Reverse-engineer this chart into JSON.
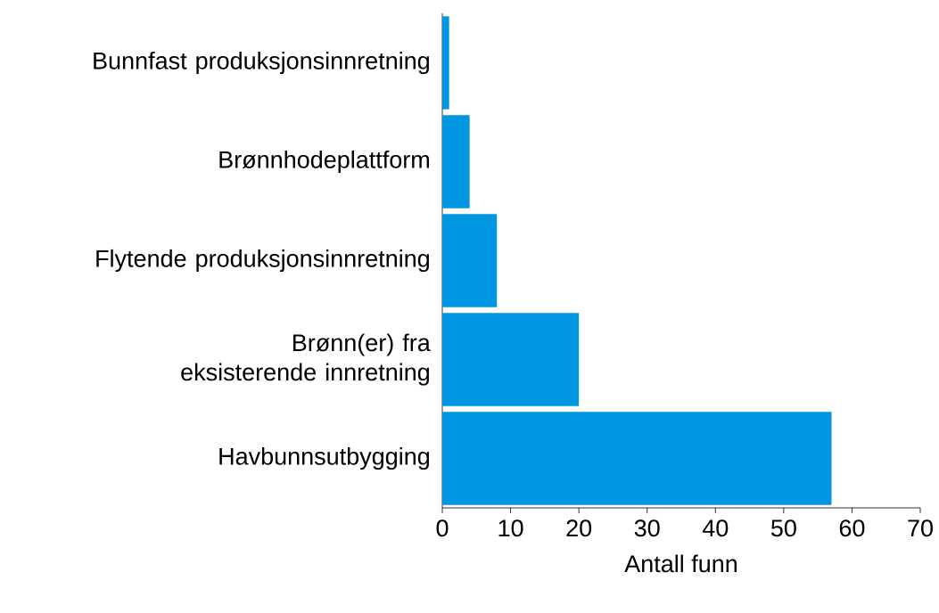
{
  "chart_data": {
    "type": "bar",
    "orientation": "horizontal",
    "xlabel": "Antall funn",
    "categories": [
      "Bunnfast produksjonsinnretning",
      "Brønnhodeplattform",
      "Flytende produksjonsinnretning",
      "Brønn(er) fra eksisterende innretning",
      "Havbunnsutbygging"
    ],
    "values": [
      1,
      4,
      8,
      20,
      57
    ],
    "color": "#0096e1",
    "xlim": [
      0,
      70
    ],
    "xticks": [
      0,
      10,
      20,
      30,
      40,
      50,
      60,
      70
    ]
  }
}
